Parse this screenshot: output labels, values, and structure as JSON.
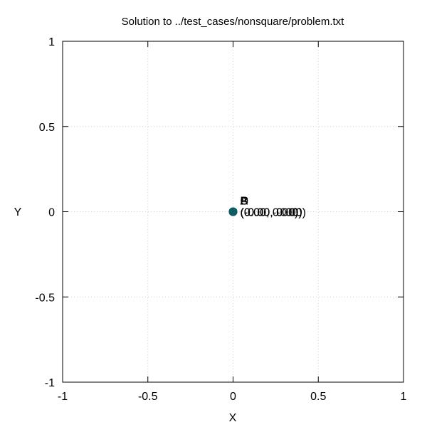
{
  "chart_data": {
    "type": "scatter",
    "title": "Solution to ../test_cases/nonsquare/problem.txt",
    "xlabel": "X",
    "ylabel": "Y",
    "xlim": [
      -1,
      1
    ],
    "ylim": [
      -1,
      1
    ],
    "xticks": [
      -1,
      -0.5,
      0,
      0.5,
      1
    ],
    "yticks": [
      -1,
      -0.5,
      0,
      0.5,
      1
    ],
    "xtick_labels": [
      "-1",
      "-0.5",
      "0",
      "0.5",
      "1"
    ],
    "ytick_labels": [
      "-1",
      "-0.5",
      "0",
      "0.5",
      "1"
    ],
    "grid": true,
    "point_color": "#0d5c63",
    "points": [
      {
        "x": 0,
        "y": 0,
        "name": "A",
        "coord_label": "(0.00, 0.00)"
      },
      {
        "x": 0,
        "y": 0,
        "name": "B",
        "coord_label": "(0.00, -0.00)"
      },
      {
        "x": 0,
        "y": 0,
        "name": "C",
        "coord_label": "(-0.00, 0.00)"
      },
      {
        "x": 0,
        "y": 0,
        "name": "D",
        "coord_label": "(-0.00, -0.00)"
      }
    ]
  }
}
